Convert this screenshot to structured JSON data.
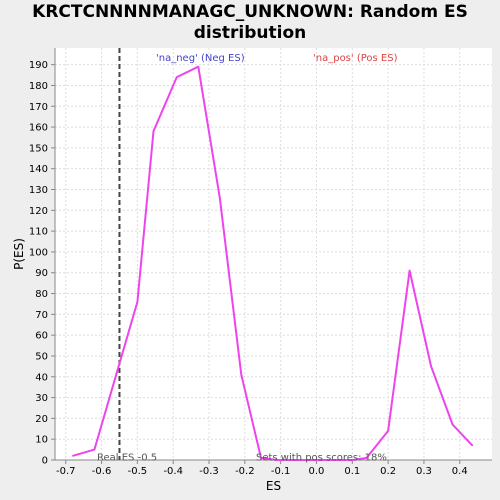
{
  "chart_data": {
    "type": "line",
    "title_line1": "KRCTCNNNNMANAGC_UNKNOWN: Random ES",
    "title_line2": "distribution",
    "xlabel": "ES",
    "ylabel": "P(ES)",
    "xlim": [
      -0.73,
      0.49
    ],
    "ylim": [
      0,
      198
    ],
    "xticks": [
      -0.7,
      -0.6,
      -0.5,
      -0.4,
      -0.3,
      -0.2,
      -0.1,
      0.0,
      0.1,
      0.2,
      0.3,
      0.4
    ],
    "xtick_labels": [
      "-0.7",
      "-0.6",
      "-0.5",
      "-0.4",
      "-0.3",
      "-0.2",
      "-0.1",
      "0.0",
      "0.1",
      "0.2",
      "0.3",
      "0.4"
    ],
    "yticks": [
      0,
      10,
      20,
      30,
      40,
      50,
      60,
      70,
      80,
      90,
      100,
      110,
      120,
      130,
      140,
      150,
      160,
      170,
      180,
      190
    ],
    "grid": true,
    "series": [
      {
        "color": "#ee44ee",
        "points": [
          [
            -0.68,
            2
          ],
          [
            -0.62,
            5
          ],
          [
            -0.5,
            76
          ],
          [
            -0.455,
            158
          ],
          [
            -0.39,
            184
          ],
          [
            -0.33,
            189
          ],
          [
            -0.27,
            126
          ],
          [
            -0.21,
            41
          ],
          [
            -0.155,
            1
          ],
          [
            -0.11,
            0
          ],
          [
            -0.06,
            0
          ],
          [
            0.0,
            0
          ],
          [
            0.05,
            0
          ],
          [
            0.1,
            0
          ],
          [
            0.14,
            1
          ],
          [
            0.2,
            14
          ],
          [
            0.26,
            91
          ],
          [
            0.32,
            45
          ],
          [
            0.38,
            17
          ],
          [
            0.435,
            7
          ]
        ]
      }
    ],
    "vline": {
      "x": -0.55,
      "color": "#444444",
      "label": "Real ES -0.5"
    },
    "legend": [
      {
        "label": "'na_neg' (Neg ES)",
        "color": "#4444cc"
      },
      {
        "label": "'na_pos' (Pos ES)",
        "color": "#dd4444"
      }
    ],
    "annotation": "Sets with pos scores: 18%"
  }
}
